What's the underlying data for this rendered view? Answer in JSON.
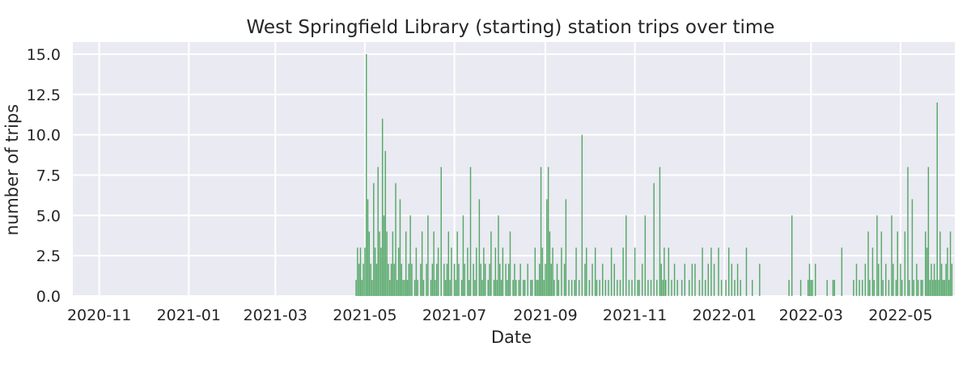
{
  "chart_data": {
    "type": "bar",
    "title": "West Springfield Library (starting) station trips over time",
    "xlabel": "Date",
    "ylabel": "number of trips",
    "xlim": [
      "2020-10-14",
      "2022-06-07"
    ],
    "ylim": [
      0,
      15.75
    ],
    "grid": true,
    "legend": "none",
    "bar_color": "#55a868",
    "background_color": "#eaeaf2",
    "grid_color": "#ffffff",
    "x_ticks": [
      {
        "date": "2020-11-01",
        "label": "2020-11"
      },
      {
        "date": "2021-01-01",
        "label": "2021-01"
      },
      {
        "date": "2021-03-01",
        "label": "2021-03"
      },
      {
        "date": "2021-05-01",
        "label": "2021-05"
      },
      {
        "date": "2021-07-01",
        "label": "2021-07"
      },
      {
        "date": "2021-09-01",
        "label": "2021-09"
      },
      {
        "date": "2021-11-01",
        "label": "2021-11"
      },
      {
        "date": "2022-01-01",
        "label": "2022-01"
      },
      {
        "date": "2022-03-01",
        "label": "2022-03"
      },
      {
        "date": "2022-05-01",
        "label": "2022-05"
      }
    ],
    "y_ticks": [
      {
        "value": 0,
        "label": "0.0"
      },
      {
        "value": 2.5,
        "label": "2.5"
      },
      {
        "value": 5,
        "label": "5.0"
      },
      {
        "value": 7.5,
        "label": "7.5"
      },
      {
        "value": 10,
        "label": "10.0"
      },
      {
        "value": 12.5,
        "label": "12.5"
      },
      {
        "value": 15,
        "label": "15.0"
      }
    ],
    "x": [
      "2021-04-25",
      "2021-04-26",
      "2021-04-27",
      "2021-04-28",
      "2021-04-29",
      "2021-04-30",
      "2021-05-01",
      "2021-05-02",
      "2021-05-03",
      "2021-05-04",
      "2021-05-05",
      "2021-05-06",
      "2021-05-07",
      "2021-05-08",
      "2021-05-09",
      "2021-05-10",
      "2021-05-11",
      "2021-05-12",
      "2021-05-13",
      "2021-05-14",
      "2021-05-15",
      "2021-05-16",
      "2021-05-17",
      "2021-05-18",
      "2021-05-19",
      "2021-05-20",
      "2021-05-21",
      "2021-05-22",
      "2021-05-23",
      "2021-05-24",
      "2021-05-25",
      "2021-05-26",
      "2021-05-27",
      "2021-05-28",
      "2021-05-29",
      "2021-05-30",
      "2021-05-31",
      "2021-06-01",
      "2021-06-02",
      "2021-06-04",
      "2021-06-05",
      "2021-06-06",
      "2021-06-08",
      "2021-06-09",
      "2021-06-10",
      "2021-06-12",
      "2021-06-13",
      "2021-06-15",
      "2021-06-16",
      "2021-06-17",
      "2021-06-18",
      "2021-06-19",
      "2021-06-20",
      "2021-06-22",
      "2021-06-24",
      "2021-06-25",
      "2021-06-26",
      "2021-06-27",
      "2021-06-28",
      "2021-06-29",
      "2021-07-01",
      "2021-07-02",
      "2021-07-03",
      "2021-07-04",
      "2021-07-06",
      "2021-07-07",
      "2021-07-08",
      "2021-07-10",
      "2021-07-11",
      "2021-07-12",
      "2021-07-14",
      "2021-07-15",
      "2021-07-16",
      "2021-07-18",
      "2021-07-19",
      "2021-07-20",
      "2021-07-21",
      "2021-07-22",
      "2021-07-24",
      "2021-07-25",
      "2021-07-26",
      "2021-07-28",
      "2021-07-29",
      "2021-07-30",
      "2021-07-31",
      "2021-08-01",
      "2021-08-02",
      "2021-08-03",
      "2021-08-05",
      "2021-08-06",
      "2021-08-07",
      "2021-08-08",
      "2021-08-10",
      "2021-08-11",
      "2021-08-12",
      "2021-08-14",
      "2021-08-15",
      "2021-08-17",
      "2021-08-18",
      "2021-08-20",
      "2021-08-22",
      "2021-08-23",
      "2021-08-25",
      "2021-08-26",
      "2021-08-27",
      "2021-08-28",
      "2021-08-29",
      "2021-08-30",
      "2021-08-31",
      "2021-09-01",
      "2021-09-02",
      "2021-09-03",
      "2021-09-04",
      "2021-09-05",
      "2021-09-06",
      "2021-09-07",
      "2021-09-09",
      "2021-09-10",
      "2021-09-12",
      "2021-09-14",
      "2021-09-15",
      "2021-09-17",
      "2021-09-19",
      "2021-09-21",
      "2021-09-22",
      "2021-09-24",
      "2021-09-26",
      "2021-09-28",
      "2021-09-29",
      "2021-10-01",
      "2021-10-03",
      "2021-10-05",
      "2021-10-06",
      "2021-10-08",
      "2021-10-10",
      "2021-10-12",
      "2021-10-14",
      "2021-10-16",
      "2021-10-18",
      "2021-10-20",
      "2021-10-22",
      "2021-10-24",
      "2021-10-26",
      "2021-10-28",
      "2021-10-30",
      "2021-11-01",
      "2021-11-03",
      "2021-11-04",
      "2021-11-06",
      "2021-11-08",
      "2021-11-10",
      "2021-11-12",
      "2021-11-14",
      "2021-11-16",
      "2021-11-18",
      "2021-11-19",
      "2021-11-20",
      "2021-11-21",
      "2021-11-22",
      "2021-11-24",
      "2021-11-26",
      "2021-11-28",
      "2021-11-30",
      "2021-12-03",
      "2021-12-05",
      "2021-12-08",
      "2021-12-10",
      "2021-12-12",
      "2021-12-15",
      "2021-12-17",
      "2021-12-19",
      "2021-12-21",
      "2021-12-23",
      "2021-12-25",
      "2021-12-28",
      "2021-12-30",
      "2022-01-02",
      "2022-01-04",
      "2022-01-06",
      "2022-01-08",
      "2022-01-10",
      "2022-01-12",
      "2022-01-16",
      "2022-01-20",
      "2022-01-25",
      "2022-02-14",
      "2022-02-16",
      "2022-02-22",
      "2022-02-27",
      "2022-02-28",
      "2022-03-01",
      "2022-03-02",
      "2022-03-04",
      "2022-03-12",
      "2022-03-16",
      "2022-03-17",
      "2022-03-22",
      "2022-03-30",
      "2022-04-01",
      "2022-04-03",
      "2022-04-05",
      "2022-04-07",
      "2022-04-09",
      "2022-04-10",
      "2022-04-12",
      "2022-04-13",
      "2022-04-15",
      "2022-04-16",
      "2022-04-18",
      "2022-04-19",
      "2022-04-21",
      "2022-04-23",
      "2022-04-25",
      "2022-04-26",
      "2022-04-28",
      "2022-04-29",
      "2022-05-01",
      "2022-05-02",
      "2022-05-04",
      "2022-05-06",
      "2022-05-07",
      "2022-05-09",
      "2022-05-10",
      "2022-05-12",
      "2022-05-13",
      "2022-05-15",
      "2022-05-16",
      "2022-05-18",
      "2022-05-19",
      "2022-05-20",
      "2022-05-21",
      "2022-05-22",
      "2022-05-23",
      "2022-05-24",
      "2022-05-25",
      "2022-05-26",
      "2022-05-27",
      "2022-05-28",
      "2022-05-29",
      "2022-05-30",
      "2022-05-31",
      "2022-06-01",
      "2022-06-02",
      "2022-06-03",
      "2022-06-04",
      "2022-06-05"
    ],
    "values": [
      1,
      3,
      2,
      3,
      1,
      2,
      3,
      15,
      6,
      4,
      2,
      1,
      7,
      3,
      2,
      8,
      4,
      3,
      11,
      5,
      9,
      4,
      2,
      1,
      2,
      4,
      2,
      7,
      1,
      3,
      6,
      2,
      1,
      1,
      4,
      1,
      2,
      5,
      2,
      1,
      3,
      1,
      2,
      4,
      1,
      2,
      5,
      1,
      2,
      4,
      1,
      2,
      3,
      8,
      2,
      1,
      2,
      4,
      1,
      3,
      2,
      1,
      4,
      2,
      1,
      5,
      2,
      3,
      1,
      8,
      2,
      1,
      3,
      6,
      2,
      1,
      3,
      2,
      1,
      2,
      4,
      1,
      3,
      1,
      5,
      2,
      1,
      3,
      2,
      1,
      2,
      4,
      1,
      2,
      1,
      1,
      2,
      1,
      1,
      2,
      1,
      1,
      3,
      1,
      1,
      2,
      8,
      3,
      1,
      2,
      6,
      8,
      4,
      2,
      3,
      1,
      2,
      1,
      3,
      2,
      6,
      1,
      1,
      1,
      3,
      1,
      10,
      2,
      3,
      1,
      2,
      3,
      1,
      1,
      2,
      1,
      1,
      3,
      2,
      1,
      1,
      3,
      5,
      1,
      1,
      3,
      1,
      1,
      2,
      5,
      1,
      1,
      7,
      1,
      8,
      2,
      1,
      3,
      1,
      3,
      1,
      2,
      1,
      1,
      2,
      1,
      2,
      2,
      1,
      3,
      1,
      2,
      3,
      2,
      3,
      1,
      1,
      3,
      2,
      1,
      2,
      1,
      3,
      1,
      2,
      1,
      5,
      1,
      1,
      2,
      1,
      1,
      2,
      1,
      1,
      1,
      3,
      1,
      2,
      1,
      1,
      2,
      4,
      1,
      3,
      1,
      5,
      2,
      4,
      1,
      2,
      1,
      5,
      2,
      1,
      4,
      2,
      1,
      4,
      8,
      1,
      6,
      1,
      2,
      1,
      1,
      1,
      4,
      3,
      8,
      1,
      2,
      1,
      2,
      1,
      12,
      1,
      4,
      2,
      1,
      1,
      2,
      3,
      1,
      4,
      2
    ]
  }
}
